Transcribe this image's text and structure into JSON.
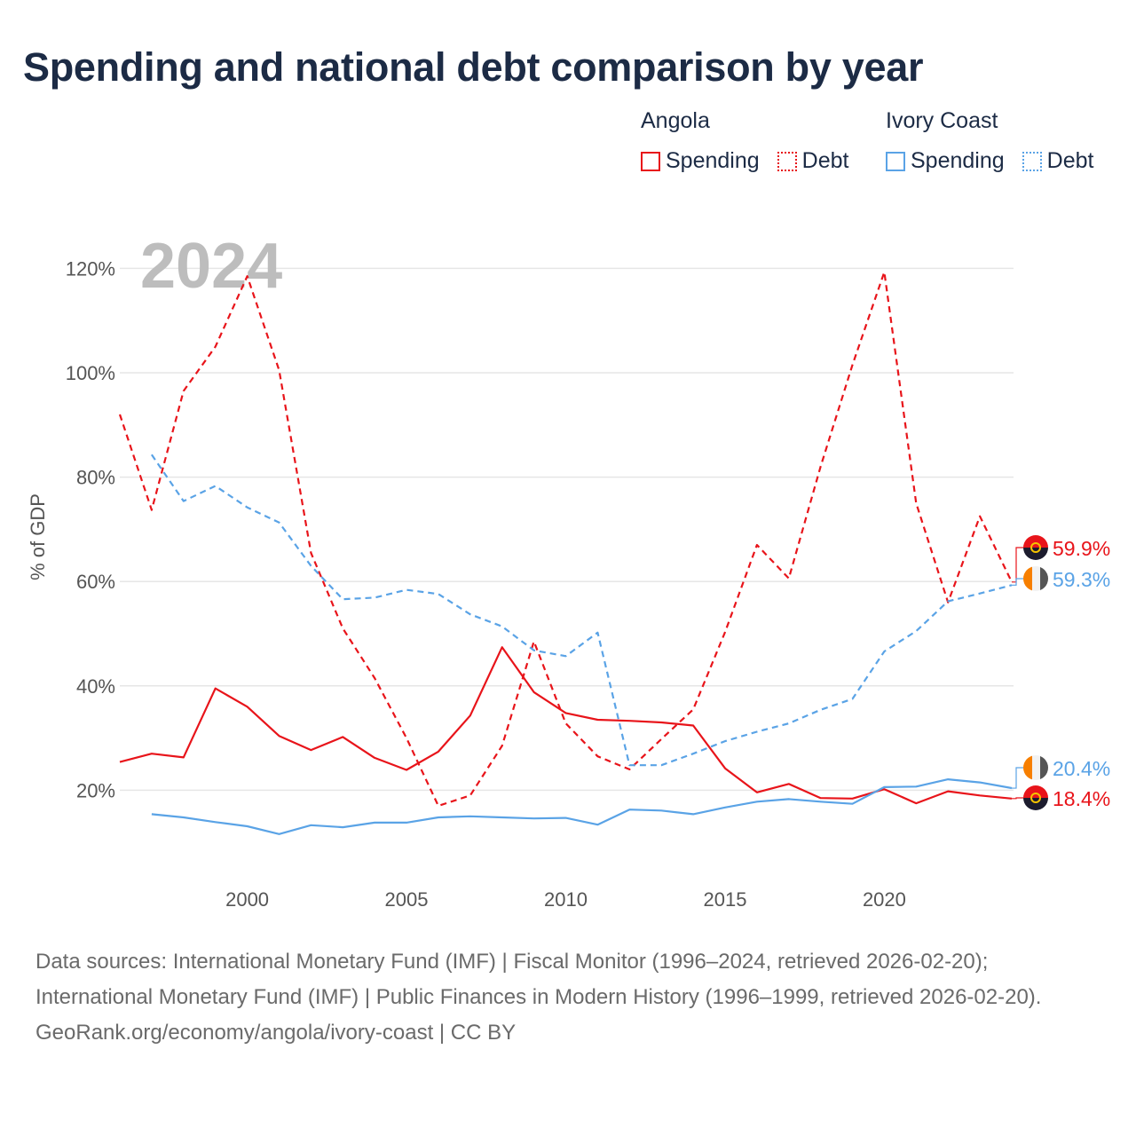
{
  "title": "Spending and national debt comparison by year",
  "legend": {
    "groups": [
      {
        "name": "Angola",
        "color": "#e8141a",
        "items": [
          {
            "label": "Spending",
            "style": "solid"
          },
          {
            "label": "Debt",
            "style": "dotted"
          }
        ]
      },
      {
        "name": "Ivory Coast",
        "color": "#5aa3e6",
        "items": [
          {
            "label": "Spending",
            "style": "solid"
          },
          {
            "label": "Debt",
            "style": "dotted"
          }
        ]
      }
    ]
  },
  "chart_data": {
    "type": "line",
    "year_watermark": "2024",
    "ylabel": "% of GDP",
    "xlabel": "",
    "xlim": [
      1996,
      2024
    ],
    "ylim": [
      0,
      125
    ],
    "xticks": [
      2000,
      2005,
      2010,
      2015,
      2020
    ],
    "yticks": [
      20,
      40,
      60,
      80,
      100,
      120
    ],
    "ytick_labels": [
      "20%",
      "40%",
      "60%",
      "80%",
      "100%",
      "120%"
    ],
    "grid": true,
    "series": [
      {
        "name": "Angola Spending",
        "country": "Angola",
        "metric": "Spending",
        "color": "#e8141a",
        "dash": "solid",
        "points": [
          [
            1996,
            25.4
          ],
          [
            1997,
            27.0
          ],
          [
            1998,
            26.3
          ],
          [
            1999,
            39.5
          ],
          [
            2000,
            36.0
          ],
          [
            2001,
            30.4
          ],
          [
            2002,
            27.7
          ],
          [
            2003,
            30.2
          ],
          [
            2004,
            26.2
          ],
          [
            2005,
            23.9
          ],
          [
            2006,
            27.4
          ],
          [
            2007,
            34.3
          ],
          [
            2008,
            47.4
          ],
          [
            2009,
            38.8
          ],
          [
            2010,
            34.8
          ],
          [
            2011,
            33.5
          ],
          [
            2012,
            33.3
          ],
          [
            2013,
            33.0
          ],
          [
            2014,
            32.4
          ],
          [
            2015,
            24.2
          ],
          [
            2016,
            19.6
          ],
          [
            2017,
            21.2
          ],
          [
            2018,
            18.5
          ],
          [
            2019,
            18.4
          ],
          [
            2020,
            20.2
          ],
          [
            2021,
            17.5
          ],
          [
            2022,
            19.8
          ],
          [
            2023,
            19.0
          ],
          [
            2024,
            18.4
          ]
        ],
        "end_label": "18.4%"
      },
      {
        "name": "Angola Debt",
        "country": "Angola",
        "metric": "Debt",
        "color": "#e8141a",
        "dash": "dashed",
        "points": [
          [
            1996,
            92.0
          ],
          [
            1997,
            73.7
          ],
          [
            1998,
            96.5
          ],
          [
            1999,
            105.0
          ],
          [
            2000,
            118.5
          ],
          [
            2001,
            100.5
          ],
          [
            2002,
            65.5
          ],
          [
            2003,
            51.0
          ],
          [
            2004,
            41.5
          ],
          [
            2005,
            30.0
          ],
          [
            2006,
            17.0
          ],
          [
            2007,
            19.0
          ],
          [
            2008,
            28.5
          ],
          [
            2009,
            48.5
          ],
          [
            2010,
            32.8
          ],
          [
            2011,
            26.5
          ],
          [
            2012,
            24.0
          ],
          [
            2013,
            29.8
          ],
          [
            2014,
            35.5
          ],
          [
            2015,
            50.3
          ],
          [
            2016,
            67.0
          ],
          [
            2017,
            60.6
          ],
          [
            2018,
            82.0
          ],
          [
            2019,
            101.5
          ],
          [
            2020,
            119.3
          ],
          [
            2021,
            75.0
          ],
          [
            2022,
            56.0
          ],
          [
            2023,
            72.5
          ],
          [
            2024,
            59.9
          ]
        ],
        "end_label": "59.9%"
      },
      {
        "name": "Ivory Coast Spending",
        "country": "Ivory Coast",
        "metric": "Spending",
        "color": "#5aa3e6",
        "dash": "solid",
        "points": [
          [
            1997,
            15.4
          ],
          [
            1998,
            14.8
          ],
          [
            1999,
            13.9
          ],
          [
            2000,
            13.1
          ],
          [
            2001,
            11.6
          ],
          [
            2002,
            13.3
          ],
          [
            2003,
            12.9
          ],
          [
            2004,
            13.8
          ],
          [
            2005,
            13.8
          ],
          [
            2006,
            14.8
          ],
          [
            2007,
            15.0
          ],
          [
            2008,
            14.8
          ],
          [
            2009,
            14.6
          ],
          [
            2010,
            14.7
          ],
          [
            2011,
            13.4
          ],
          [
            2012,
            16.3
          ],
          [
            2013,
            16.1
          ],
          [
            2014,
            15.4
          ],
          [
            2015,
            16.7
          ],
          [
            2016,
            17.8
          ],
          [
            2017,
            18.3
          ],
          [
            2018,
            17.8
          ],
          [
            2019,
            17.4
          ],
          [
            2020,
            20.6
          ],
          [
            2021,
            20.7
          ],
          [
            2022,
            22.1
          ],
          [
            2023,
            21.5
          ],
          [
            2024,
            20.4
          ]
        ],
        "end_label": "20.4%"
      },
      {
        "name": "Ivory Coast Debt",
        "country": "Ivory Coast",
        "metric": "Debt",
        "color": "#5aa3e6",
        "dash": "dashed",
        "points": [
          [
            1997,
            84.3
          ],
          [
            1998,
            75.4
          ],
          [
            1999,
            78.3
          ],
          [
            2000,
            74.2
          ],
          [
            2001,
            71.3
          ],
          [
            2002,
            63.0
          ],
          [
            2003,
            56.6
          ],
          [
            2004,
            56.9
          ],
          [
            2005,
            58.4
          ],
          [
            2006,
            57.6
          ],
          [
            2007,
            53.7
          ],
          [
            2008,
            51.4
          ],
          [
            2009,
            46.8
          ],
          [
            2010,
            45.7
          ],
          [
            2011,
            50.2
          ],
          [
            2012,
            24.8
          ],
          [
            2013,
            24.8
          ],
          [
            2014,
            27.0
          ],
          [
            2015,
            29.4
          ],
          [
            2016,
            31.2
          ],
          [
            2017,
            32.8
          ],
          [
            2018,
            35.4
          ],
          [
            2019,
            37.5
          ],
          [
            2020,
            46.6
          ],
          [
            2021,
            50.5
          ],
          [
            2022,
            56.2
          ],
          [
            2023,
            57.7
          ],
          [
            2024,
            59.3
          ]
        ],
        "end_label": "59.3%"
      }
    ]
  },
  "footer": {
    "sources": "Data sources: International Monetary Fund (IMF) | Fiscal Monitor (1996–2024, retrieved 2026-02-20); International Monetary Fund (IMF) | Public Finances in Modern History (1996–1999, retrieved 2026-02-20).",
    "credit": "GeoRank.org/economy/angola/ivory-coast | CC BY"
  }
}
